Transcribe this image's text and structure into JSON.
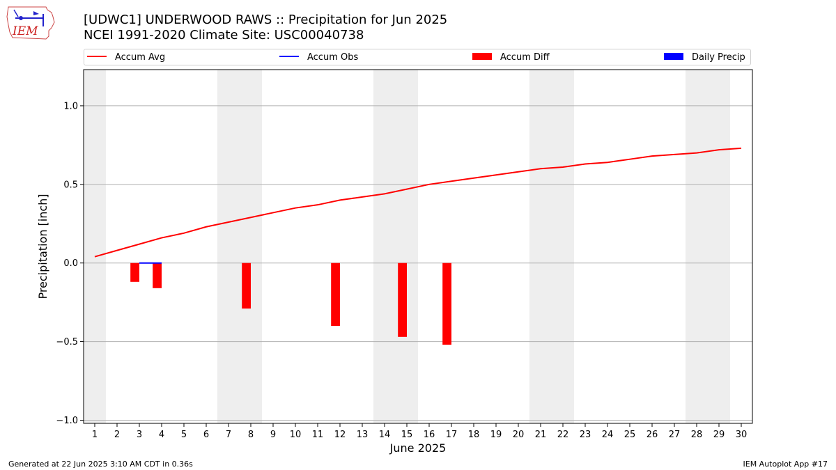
{
  "header": {
    "title_line1": "[UDWC1] UNDERWOOD RAWS :: Precipitation for Jun 2025",
    "title_line2": "NCEI 1991-2020 Climate Site: USC00040738"
  },
  "logo": {
    "text": "IEM",
    "icon": "iem-iowa-logo-icon"
  },
  "legend": {
    "items": [
      {
        "label": "Accum Avg",
        "color": "#ff0000",
        "kind": "line"
      },
      {
        "label": "Accum Obs",
        "color": "#0000ff",
        "kind": "line"
      },
      {
        "label": "Accum Diff",
        "color": "#ff0000",
        "kind": "box"
      },
      {
        "label": "Daily Precip",
        "color": "#0000ff",
        "kind": "box"
      }
    ]
  },
  "footer": {
    "left": "Generated at 22 Jun 2025 3:10 AM CDT in 0.36s",
    "right": "IEM Autoplot App #17"
  },
  "chart_data": {
    "type": "line",
    "title": "[UDWC1] UNDERWOOD RAWS :: Precipitation for Jun 2025",
    "xlabel": "June 2025",
    "ylabel": "Precipitation [inch]",
    "x": [
      1,
      2,
      3,
      4,
      5,
      6,
      7,
      8,
      9,
      10,
      11,
      12,
      13,
      14,
      15,
      16,
      17,
      18,
      19,
      20,
      21,
      22,
      23,
      24,
      25,
      26,
      27,
      28,
      29,
      30
    ],
    "xlim": [
      0.5,
      30.5
    ],
    "ylim": [
      -1.02,
      1.23
    ],
    "yticks": [
      -1.0,
      -0.5,
      0.0,
      0.5,
      1.0
    ],
    "ytick_labels": [
      "−1.0",
      "−0.5",
      "0.0",
      "0.5",
      "1.0"
    ],
    "grid": "horizontal",
    "legend_position": "top",
    "weekend_shading": [
      [
        0.5,
        1.5
      ],
      [
        6.5,
        8.5
      ],
      [
        13.5,
        15.5
      ],
      [
        20.5,
        22.5
      ],
      [
        27.5,
        29.5
      ]
    ],
    "shade_color": "#eeeeee",
    "series": [
      {
        "name": "Accum Avg",
        "kind": "line",
        "color": "#ff0000",
        "x": [
          1,
          2,
          3,
          4,
          5,
          6,
          7,
          8,
          9,
          10,
          11,
          12,
          13,
          14,
          15,
          16,
          17,
          18,
          19,
          20,
          21,
          22,
          23,
          24,
          25,
          26,
          27,
          28,
          29,
          30
        ],
        "values": [
          0.04,
          0.08,
          0.12,
          0.16,
          0.19,
          0.23,
          0.26,
          0.29,
          0.32,
          0.35,
          0.37,
          0.4,
          0.42,
          0.44,
          0.47,
          0.5,
          0.52,
          0.54,
          0.56,
          0.58,
          0.6,
          0.61,
          0.63,
          0.64,
          0.66,
          0.68,
          0.69,
          0.7,
          0.72,
          0.73
        ]
      },
      {
        "name": "Accum Obs",
        "kind": "line",
        "color": "#0000ff",
        "x": [
          3,
          4
        ],
        "values": [
          0.0,
          0.0
        ]
      },
      {
        "name": "Accum Diff",
        "kind": "bar",
        "color": "#ff0000",
        "x": [
          3,
          4,
          8,
          12,
          15,
          17
        ],
        "values": [
          -0.12,
          -0.16,
          -0.29,
          -0.4,
          -0.47,
          -0.52
        ]
      },
      {
        "name": "Daily Precip",
        "kind": "bar",
        "color": "#0000ff",
        "x": [],
        "values": []
      }
    ]
  }
}
